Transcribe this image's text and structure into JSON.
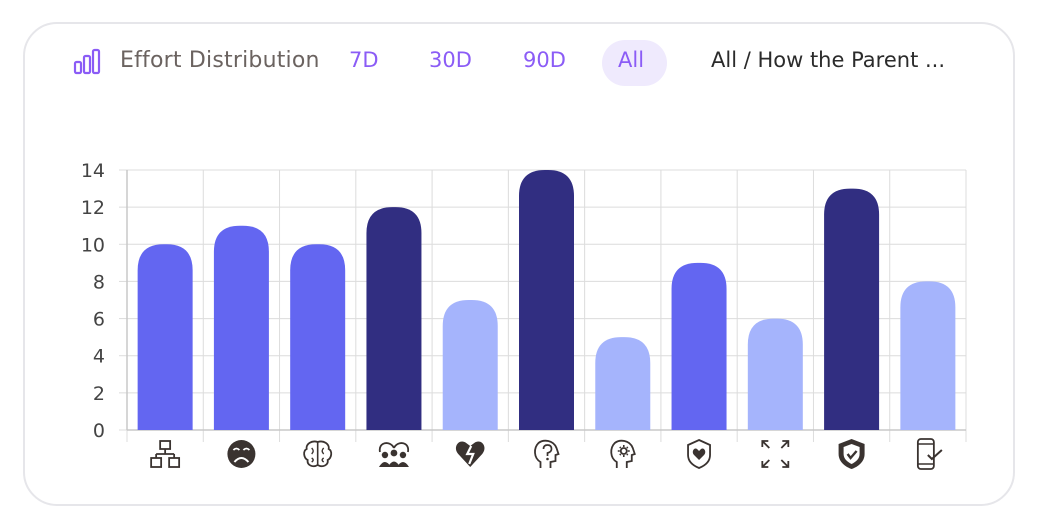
{
  "header": {
    "title": "Effort Distribution",
    "ranges": [
      "7D",
      "30D",
      "90D",
      "All"
    ],
    "selected_range": "All",
    "breadcrumb": "All / How the Parent ..."
  },
  "colors": {
    "accent": "#8b5cf6",
    "medium": "#6366f1",
    "dark": "#312e81",
    "light": "#a5b4fc",
    "pill": "#efeafd"
  },
  "chart_data": {
    "type": "bar",
    "title": "Effort Distribution",
    "xlabel": "",
    "ylabel": "",
    "ylim": [
      0,
      14
    ],
    "yticks": [
      0,
      2,
      4,
      6,
      8,
      10,
      12,
      14
    ],
    "grid": true,
    "categories": [
      "hierarchy-icon",
      "sad-face-icon",
      "brain-icon",
      "family-heart-icon",
      "broken-heart-icon",
      "question-head-icon",
      "mind-gear-icon",
      "shield-heart-icon",
      "expand-icon",
      "shield-check-icon",
      "phone-check-icon"
    ],
    "values": [
      10,
      11,
      10,
      12,
      7,
      14,
      5,
      9,
      6,
      13,
      8
    ],
    "bar_tones": [
      "medium",
      "medium",
      "medium",
      "dark",
      "light",
      "dark",
      "light",
      "medium",
      "light",
      "dark",
      "light"
    ]
  }
}
